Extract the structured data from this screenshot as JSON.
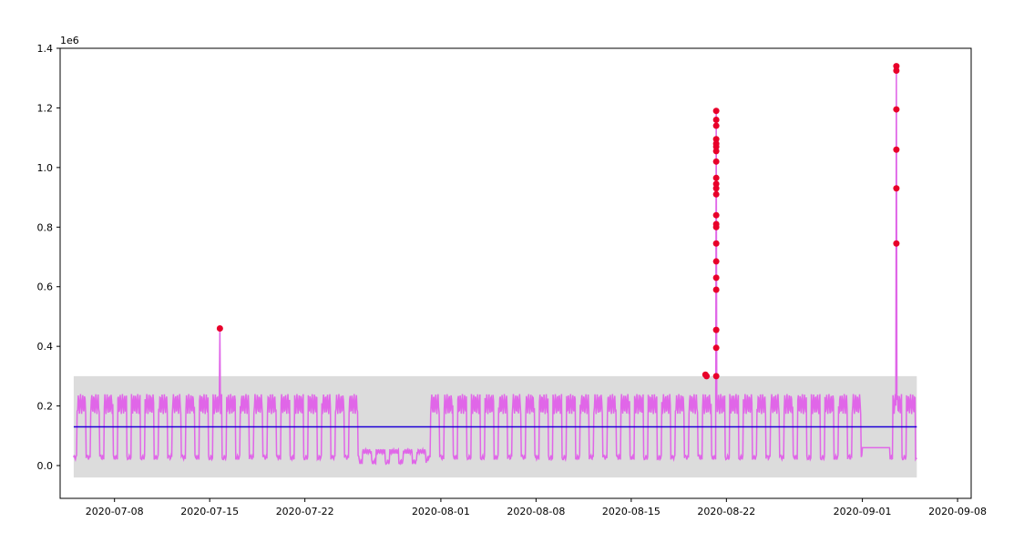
{
  "chart_data": {
    "type": "line",
    "title": "",
    "xlabel": "",
    "ylabel": "",
    "y_offset_label": "1e6",
    "xlim": [
      "2020-07-04",
      "2020-09-09"
    ],
    "ylim": [
      -110000,
      1400000
    ],
    "x_ticks": [
      "2020-07-08",
      "2020-07-15",
      "2020-07-22",
      "2020-08-01",
      "2020-08-08",
      "2020-08-15",
      "2020-08-22",
      "2020-09-01",
      "2020-09-08"
    ],
    "y_ticks": [
      0.0,
      0.2,
      0.4,
      0.6,
      0.8,
      1.0,
      1.2,
      1.4
    ],
    "y_tick_labels": [
      "0.0",
      "0.2",
      "0.4",
      "0.6",
      "0.8",
      "1.0",
      "1.2",
      "1.4"
    ],
    "grid": false,
    "legend": "none",
    "colors": {
      "series": "#e066e8",
      "mean_line": "#1c00d6",
      "band": "#dcdcdc",
      "anomaly": "#e8002a"
    },
    "band": {
      "x_start": "2020-07-05",
      "x_end": "2020-09-05",
      "lower": -40000,
      "upper": 300000
    },
    "mean_line": {
      "x_start": "2020-07-05",
      "x_end": "2020-09-05",
      "value": 130000
    },
    "series_profile": {
      "start": "2020-07-05",
      "end": "2020-09-05",
      "daily_min": 20000,
      "daily_max": 240000,
      "low_period": [
        "2020-07-26",
        "2020-07-31"
      ],
      "low_max": 55000,
      "gap": [
        "2020-09-01",
        "2020-09-03"
      ],
      "gap_value": 60000
    },
    "spikes": [
      {
        "x": "2020-07-15 18:00",
        "y": 460000
      },
      {
        "x": "2020-08-21 06:00",
        "y": 1190000
      },
      {
        "x": "2020-09-03 12:00",
        "y": 1340000
      }
    ],
    "anomalies": [
      {
        "x": "2020-07-15 18:00",
        "y": 460000
      },
      {
        "x": "2020-08-20 11:00",
        "y": 305000
      },
      {
        "x": "2020-08-20 13:00",
        "y": 300000
      },
      {
        "x": "2020-08-21 06:00",
        "y": 1190000
      },
      {
        "x": "2020-08-21 06:00",
        "y": 1160000
      },
      {
        "x": "2020-08-21 06:00",
        "y": 1140000
      },
      {
        "x": "2020-08-21 06:00",
        "y": 1095000
      },
      {
        "x": "2020-08-21 06:00",
        "y": 1080000
      },
      {
        "x": "2020-08-21 06:00",
        "y": 1070000
      },
      {
        "x": "2020-08-21 06:00",
        "y": 1055000
      },
      {
        "x": "2020-08-21 06:00",
        "y": 1020000
      },
      {
        "x": "2020-08-21 06:00",
        "y": 965000
      },
      {
        "x": "2020-08-21 06:00",
        "y": 945000
      },
      {
        "x": "2020-08-21 06:00",
        "y": 930000
      },
      {
        "x": "2020-08-21 06:00",
        "y": 910000
      },
      {
        "x": "2020-08-21 06:00",
        "y": 840000
      },
      {
        "x": "2020-08-21 06:00",
        "y": 810000
      },
      {
        "x": "2020-08-21 06:00",
        "y": 800000
      },
      {
        "x": "2020-08-21 06:00",
        "y": 745000
      },
      {
        "x": "2020-08-21 06:00",
        "y": 685000
      },
      {
        "x": "2020-08-21 06:00",
        "y": 630000
      },
      {
        "x": "2020-08-21 06:00",
        "y": 590000
      },
      {
        "x": "2020-08-21 06:00",
        "y": 455000
      },
      {
        "x": "2020-08-21 06:00",
        "y": 395000
      },
      {
        "x": "2020-08-21 06:00",
        "y": 300000
      },
      {
        "x": "2020-09-03 12:00",
        "y": 1340000
      },
      {
        "x": "2020-09-03 12:00",
        "y": 1325000
      },
      {
        "x": "2020-09-03 12:00",
        "y": 1195000
      },
      {
        "x": "2020-09-03 12:00",
        "y": 1060000
      },
      {
        "x": "2020-09-03 12:00",
        "y": 930000
      },
      {
        "x": "2020-09-03 12:00",
        "y": 745000
      }
    ]
  }
}
